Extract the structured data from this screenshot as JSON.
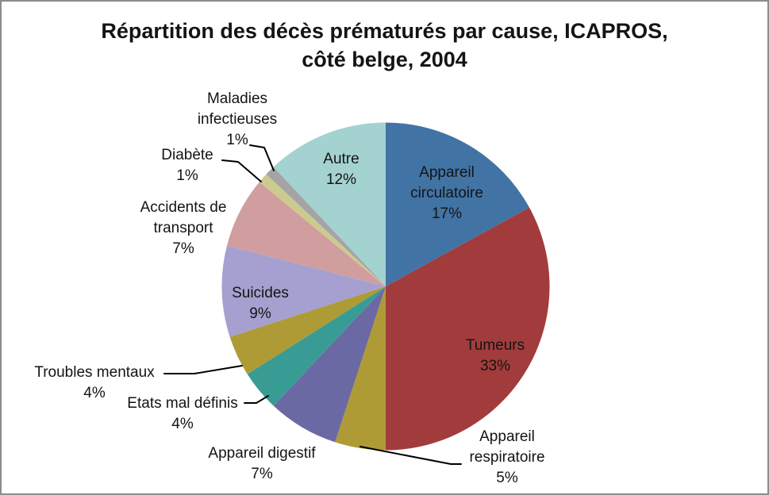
{
  "chart_data": {
    "type": "pie",
    "title": "Répartition des décès prématurés par cause, ICAPROS,\ncôté belge, 2004",
    "unit": "%",
    "legend_position": "none",
    "start_angle_deg": 0,
    "direction": "clockwise",
    "categories": [
      "Appareil circulatoire",
      "Tumeurs",
      "Appareil respiratoire",
      "Appareil digestif",
      "Etats mal définis",
      "Troubles mentaux",
      "Suicides",
      "Accidents de transport",
      "Diabète",
      "Maladies infectieuses",
      "Autre"
    ],
    "values": [
      17,
      33,
      5,
      7,
      4,
      4,
      9,
      7,
      1,
      1,
      12
    ],
    "slices": [
      {
        "id": "appareil-circulatoire",
        "name": "Appareil circulatoire",
        "value": 17,
        "pct": "17%",
        "color": "#4273A5",
        "label_text": "Appareil\ncirculatoire\n17%",
        "placement": "inside",
        "leader_line": false
      },
      {
        "id": "tumeurs",
        "name": "Tumeurs",
        "value": 33,
        "pct": "33%",
        "color": "#A23C3C",
        "label_text": "Tumeurs\n33%",
        "placement": "inside",
        "leader_line": false
      },
      {
        "id": "appareil-respiratoire",
        "name": "Appareil respiratoire",
        "value": 5,
        "pct": "5%",
        "color": "#AE9B36",
        "label_text": "Appareil\nrespiratoire\n5%",
        "placement": "outside",
        "leader_line": true
      },
      {
        "id": "appareil-digestif",
        "name": "Appareil digestif",
        "value": 7,
        "pct": "7%",
        "color": "#6B69A3",
        "label_text": "Appareil digestif\n7%",
        "placement": "outside",
        "leader_line": false
      },
      {
        "id": "etats-mal-definis",
        "name": "Etats mal définis",
        "value": 4,
        "pct": "4%",
        "color": "#389C95",
        "label_text": "Etats mal définis\n4%",
        "placement": "outside",
        "leader_line": true
      },
      {
        "id": "troubles-mentaux",
        "name": "Troubles mentaux",
        "value": 4,
        "pct": "4%",
        "color": "#AE9B36",
        "label_text": "Troubles mentaux\n4%",
        "placement": "outside",
        "leader_line": true
      },
      {
        "id": "suicides",
        "name": "Suicides",
        "value": 9,
        "pct": "9%",
        "color": "#A5A0D0",
        "label_text": "Suicides\n9%",
        "placement": "inside",
        "leader_line": false
      },
      {
        "id": "accidents-de-transport",
        "name": "Accidents de transport",
        "value": 7,
        "pct": "7%",
        "color": "#D09E9E",
        "label_text": "Accidents de\ntransport\n7%",
        "placement": "outside",
        "leader_line": false
      },
      {
        "id": "diabete",
        "name": "Diabète",
        "value": 1,
        "pct": "1%",
        "color": "#CDCA8F",
        "label_text": "Diabète\n1%",
        "placement": "outside",
        "leader_line": true
      },
      {
        "id": "maladies-infectieuses",
        "name": "Maladies infectieuses",
        "value": 1,
        "pct": "1%",
        "color": "#A4A4A6",
        "label_text": "Maladies\ninfectieuses\n1%",
        "placement": "outside",
        "leader_line": true
      },
      {
        "id": "autre",
        "name": "Autre",
        "value": 12,
        "pct": "12%",
        "color": "#A3D2D0",
        "label_text": "Autre\n12%",
        "placement": "inside",
        "leader_line": false
      }
    ]
  }
}
